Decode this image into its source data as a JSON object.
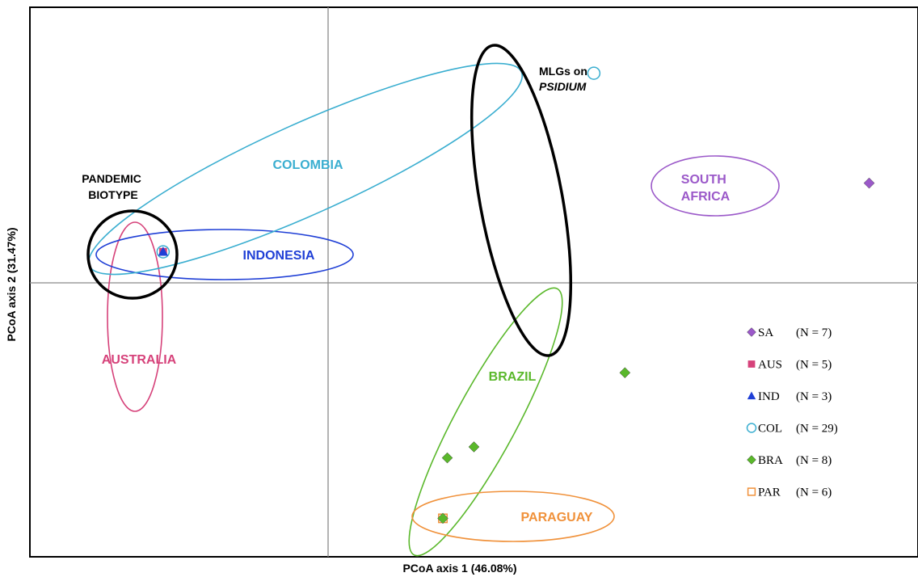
{
  "chart_data": {
    "type": "scatter",
    "title": "",
    "xlabel": "PCoA axis 1 (46.08%)",
    "ylabel": "PCoA axis 2 (31.47%)",
    "xlim": [
      -1,
      1
    ],
    "ylim": [
      -1,
      1
    ],
    "grid": false,
    "legend_position": "right",
    "series": [
      {
        "name": "SA",
        "count": "(N = 7)",
        "marker": "diamond",
        "color": "#9b59c9",
        "points": [
          [
            0.89,
            0.36
          ]
        ]
      },
      {
        "name": "AUS",
        "count": "(N = 5)",
        "marker": "square",
        "color": "#d6427a",
        "points": [
          [
            -0.7,
            0.11
          ]
        ]
      },
      {
        "name": "IND",
        "count": "(N = 3)",
        "marker": "triangle",
        "color": "#1f3fd6",
        "points": [
          [
            -0.7,
            0.11
          ]
        ]
      },
      {
        "name": "COL",
        "count": "(N = 29)",
        "marker": "circle-open",
        "color": "#3aaed0",
        "points": [
          [
            0.27,
            0.76
          ],
          [
            -0.7,
            0.11
          ]
        ]
      },
      {
        "name": "BRA",
        "count": "(N = 8)",
        "marker": "diamond",
        "color": "#5ab82b",
        "points": [
          [
            0.34,
            -0.33
          ],
          [
            0.0,
            -0.6
          ],
          [
            -0.06,
            -0.64
          ],
          [
            -0.07,
            -0.86
          ]
        ]
      },
      {
        "name": "PAR",
        "count": "(N = 6)",
        "marker": "square-open",
        "color": "#f0913a",
        "points": [
          [
            -0.07,
            -0.86
          ]
        ]
      }
    ],
    "groups": [
      {
        "label": "SOUTH AFRICA",
        "lines": [
          "SOUTH",
          "AFRICA"
        ],
        "color": "#9b59c9"
      },
      {
        "label": "AUSTRALIA",
        "lines": [
          "AUSTRALIA"
        ],
        "color": "#d6427a"
      },
      {
        "label": "INDONESIA",
        "lines": [
          "INDONESIA"
        ],
        "color": "#1f3fd6"
      },
      {
        "label": "COLOMBIA",
        "lines": [
          "COLOMBIA"
        ],
        "color": "#3aaed0"
      },
      {
        "label": "BRAZIL",
        "lines": [
          "BRAZIL"
        ],
        "color": "#5ab82b"
      },
      {
        "label": "PARAGUAY",
        "lines": [
          "PARAGUAY"
        ],
        "color": "#f0913a"
      }
    ],
    "annotations": [
      {
        "lines": [
          "PANDEMIC",
          "BIOTYPE"
        ],
        "italic": [
          false,
          false
        ]
      },
      {
        "lines": [
          "MLGs on",
          "PSIDIUM"
        ],
        "italic": [
          false,
          true
        ]
      }
    ]
  }
}
